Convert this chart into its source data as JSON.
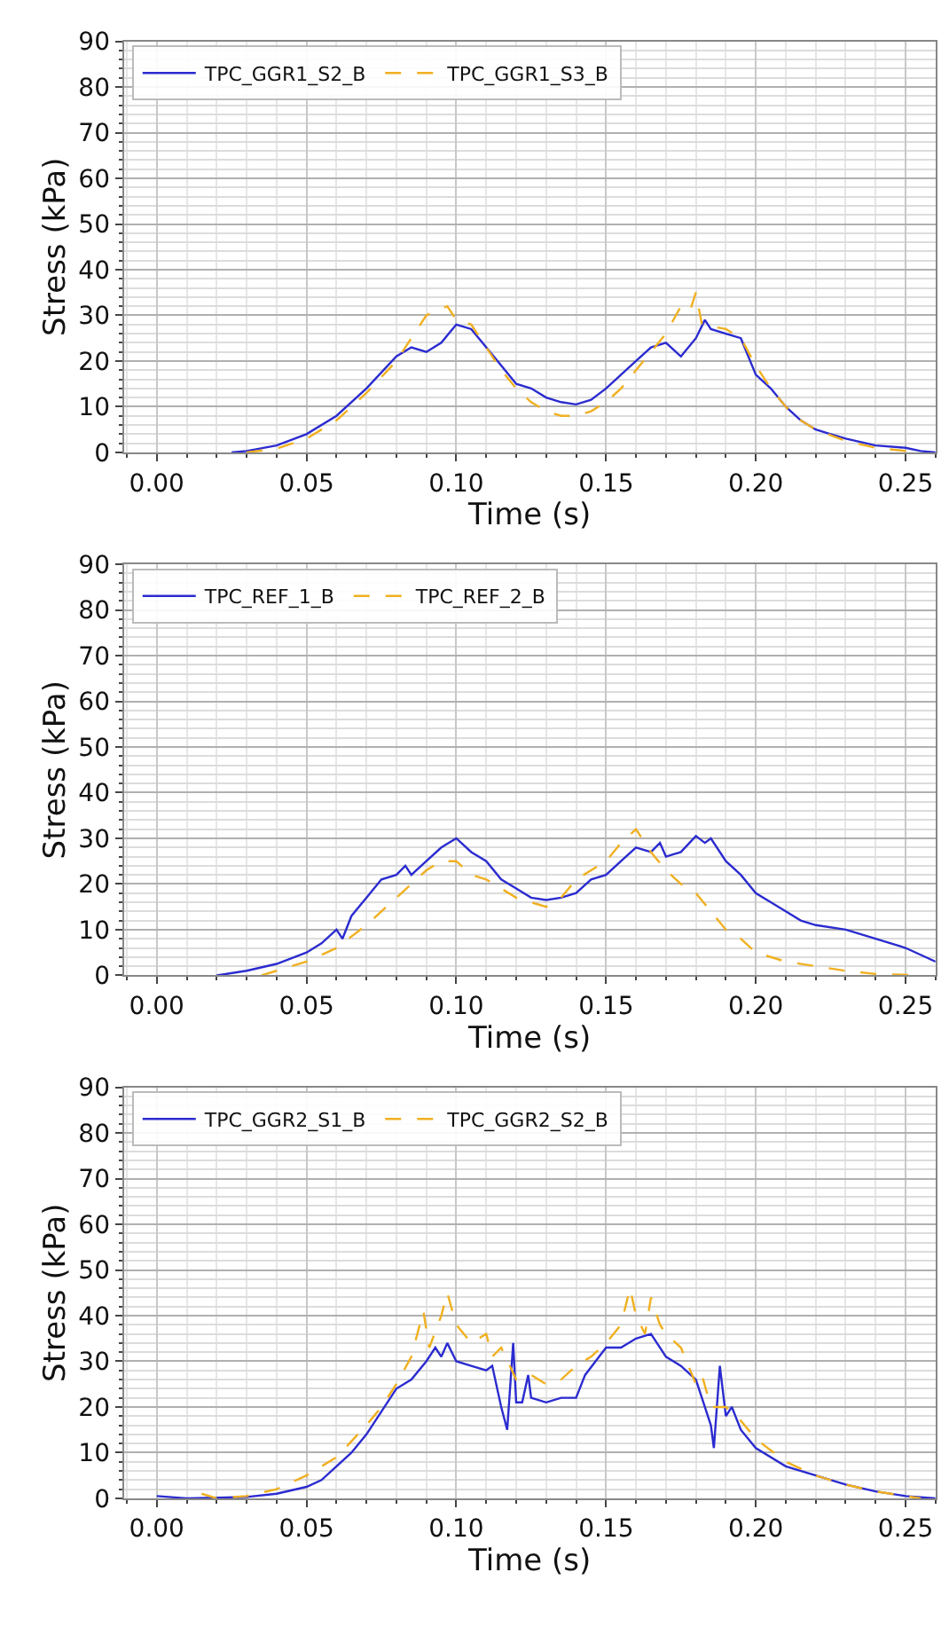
{
  "chart_data": [
    {
      "type": "line",
      "xlabel": "Time (s)",
      "ylabel": "Stress (kPa)",
      "xlim": [
        -0.011,
        0.26
      ],
      "ylim": [
        0,
        90
      ],
      "xticks": [
        {
          "value": 0,
          "label": "0.00"
        },
        0.05,
        {
          "value": 0.1,
          "label": "0.10"
        },
        0.15,
        {
          "value": 0.2,
          "label": "0.20"
        },
        0.25
      ],
      "yticks": [
        0,
        10,
        20,
        30,
        40,
        50,
        60,
        70,
        80,
        90
      ],
      "grid": true,
      "legend": "top left",
      "marker": "none",
      "series": [
        {
          "name": "TPC_GGR1_S2_B",
          "color": "#2b2bd0",
          "line_style": "solid",
          "x": [
            0.025,
            0.03,
            0.04,
            0.05,
            0.06,
            0.07,
            0.08,
            0.085,
            0.09,
            0.095,
            0.1,
            0.105,
            0.11,
            0.115,
            0.12,
            0.125,
            0.13,
            0.135,
            0.14,
            0.145,
            0.15,
            0.155,
            0.16,
            0.165,
            0.17,
            0.175,
            0.18,
            0.183,
            0.185,
            0.19,
            0.195,
            0.2,
            0.205,
            0.21,
            0.215,
            0.22,
            0.225,
            0.23,
            0.24,
            0.25,
            0.255,
            0.26
          ],
          "values": [
            0,
            0.3,
            1.5,
            4,
            8,
            14,
            21,
            23,
            22,
            24,
            28,
            27,
            23,
            19,
            15,
            14,
            12,
            11,
            10.5,
            11.5,
            14,
            17,
            20,
            23,
            24,
            21,
            25,
            29,
            27,
            26,
            25,
            17,
            14,
            10,
            7,
            5,
            4,
            3,
            1.5,
            1,
            0.3,
            0
          ]
        },
        {
          "name": "TPC_GGR1_S3_B",
          "color": "#f0b020",
          "line_style": "dashed",
          "x": [
            0.03,
            0.04,
            0.05,
            0.06,
            0.07,
            0.08,
            0.085,
            0.09,
            0.093,
            0.097,
            0.1,
            0.105,
            0.11,
            0.115,
            0.12,
            0.125,
            0.13,
            0.135,
            0.14,
            0.145,
            0.15,
            0.155,
            0.16,
            0.165,
            0.17,
            0.175,
            0.178,
            0.18,
            0.182,
            0.19,
            0.195,
            0.2,
            0.205,
            0.21,
            0.215,
            0.22,
            0.23,
            0.24,
            0.25,
            0.255
          ],
          "values": [
            0,
            0.8,
            3,
            7,
            13,
            20,
            25,
            30,
            31,
            32,
            29,
            28,
            23,
            18,
            14,
            11,
            9,
            8,
            8,
            9,
            11,
            14,
            18,
            22,
            26,
            32,
            31,
            35,
            28,
            27,
            25,
            19,
            14,
            10,
            7,
            5,
            2.5,
            1,
            0.3,
            0
          ]
        }
      ]
    },
    {
      "type": "line",
      "xlabel": "Time (s)",
      "ylabel": "Stress (kPa)",
      "xlim": [
        -0.011,
        0.26
      ],
      "ylim": [
        0,
        90
      ],
      "xticks": [
        {
          "value": 0,
          "label": "0.00"
        },
        0.05,
        {
          "value": 0.1,
          "label": "0.10"
        },
        0.15,
        {
          "value": 0.2,
          "label": "0.20"
        },
        0.25
      ],
      "yticks": [
        0,
        10,
        20,
        30,
        40,
        50,
        60,
        70,
        80,
        90
      ],
      "grid": true,
      "legend": "top left",
      "marker": "none",
      "series": [
        {
          "name": "TPC_REF_1_B",
          "color": "#2b2bd0",
          "line_style": "solid",
          "x": [
            0.02,
            0.03,
            0.04,
            0.05,
            0.055,
            0.06,
            0.062,
            0.065,
            0.07,
            0.075,
            0.08,
            0.083,
            0.085,
            0.09,
            0.095,
            0.1,
            0.105,
            0.11,
            0.115,
            0.12,
            0.125,
            0.13,
            0.135,
            0.14,
            0.145,
            0.15,
            0.155,
            0.16,
            0.165,
            0.168,
            0.17,
            0.175,
            0.18,
            0.183,
            0.185,
            0.19,
            0.195,
            0.2,
            0.205,
            0.21,
            0.215,
            0.22,
            0.23,
            0.24,
            0.25,
            0.26
          ],
          "values": [
            0,
            1,
            2.5,
            5,
            7,
            10,
            8,
            13,
            17,
            21,
            22,
            24,
            22,
            25,
            28,
            30,
            27,
            25,
            21,
            19,
            17,
            16.5,
            17,
            18,
            21,
            22,
            25,
            28,
            27,
            29,
            26,
            27,
            30.5,
            29,
            30,
            25,
            22,
            18,
            16,
            14,
            12,
            11,
            10,
            8,
            6,
            3
          ]
        },
        {
          "name": "TPC_REF_2_B",
          "color": "#f0b020",
          "line_style": "dashed",
          "x": [
            0.035,
            0.04,
            0.05,
            0.06,
            0.07,
            0.08,
            0.09,
            0.095,
            0.1,
            0.105,
            0.11,
            0.12,
            0.125,
            0.13,
            0.135,
            0.14,
            0.145,
            0.15,
            0.155,
            0.16,
            0.165,
            0.17,
            0.175,
            0.18,
            0.185,
            0.19,
            0.195,
            0.2,
            0.21,
            0.22,
            0.23,
            0.24,
            0.255
          ],
          "values": [
            0,
            1,
            3,
            6,
            11,
            17,
            23,
            25,
            25,
            22,
            21,
            17,
            16,
            15,
            17,
            21,
            23,
            25,
            29,
            32,
            27,
            23,
            20,
            18,
            14,
            10,
            8,
            5,
            3,
            2,
            1,
            0.3,
            0
          ]
        }
      ]
    },
    {
      "type": "line",
      "xlabel": "Time (s)",
      "ylabel": "Stress (kPa)",
      "xlim": [
        -0.011,
        0.26
      ],
      "ylim": [
        0,
        90
      ],
      "xticks": [
        {
          "value": 0,
          "label": "0.00"
        },
        0.05,
        {
          "value": 0.1,
          "label": "0.10"
        },
        0.15,
        {
          "value": 0.2,
          "label": "0.20"
        },
        0.25
      ],
      "yticks": [
        0,
        10,
        20,
        30,
        40,
        50,
        60,
        70,
        80,
        90
      ],
      "grid": true,
      "legend": "top left",
      "marker": "none",
      "series": [
        {
          "name": "TPC_GGR2_S1_B",
          "color": "#2b2bd0",
          "line_style": "solid",
          "x": [
            0.0,
            0.01,
            0.03,
            0.04,
            0.05,
            0.055,
            0.06,
            0.065,
            0.07,
            0.075,
            0.08,
            0.085,
            0.09,
            0.093,
            0.095,
            0.097,
            0.1,
            0.105,
            0.11,
            0.112,
            0.115,
            0.117,
            0.119,
            0.12,
            0.122,
            0.124,
            0.125,
            0.13,
            0.135,
            0.14,
            0.143,
            0.15,
            0.155,
            0.16,
            0.165,
            0.17,
            0.175,
            0.18,
            0.185,
            0.186,
            0.188,
            0.19,
            0.192,
            0.195,
            0.2,
            0.21,
            0.22,
            0.23,
            0.24,
            0.25,
            0.26
          ],
          "values": [
            0.5,
            0,
            0.3,
            1,
            2.5,
            4,
            7,
            10,
            14,
            19,
            24,
            26,
            30,
            33,
            31,
            34,
            30,
            29,
            28,
            29,
            20,
            15,
            34,
            21,
            21,
            27,
            22,
            21,
            22,
            22,
            27,
            33,
            33,
            35,
            36,
            31,
            29,
            26,
            16,
            11,
            29,
            18,
            20,
            15,
            11,
            7,
            5,
            3,
            1.5,
            0.5,
            0
          ]
        },
        {
          "name": "TPC_GGR2_S2_B",
          "color": "#f0b020",
          "line_style": "dashed",
          "x": [
            0.015,
            0.02,
            0.03,
            0.04,
            0.05,
            0.06,
            0.07,
            0.075,
            0.08,
            0.085,
            0.089,
            0.091,
            0.095,
            0.097,
            0.1,
            0.105,
            0.11,
            0.112,
            0.115,
            0.12,
            0.125,
            0.13,
            0.135,
            0.14,
            0.145,
            0.15,
            0.155,
            0.158,
            0.16,
            0.163,
            0.165,
            0.168,
            0.17,
            0.175,
            0.18,
            0.182,
            0.185,
            0.19,
            0.195,
            0.2,
            0.21,
            0.22,
            0.23,
            0.24,
            0.25,
            0.255
          ],
          "values": [
            1,
            0,
            0.5,
            2,
            5,
            9,
            16,
            20,
            25,
            31,
            41,
            33,
            40,
            45,
            38,
            34,
            36,
            31,
            33,
            26,
            27,
            25,
            26,
            29,
            31,
            34,
            38,
            46,
            40,
            36,
            44,
            38,
            36,
            33,
            25,
            27,
            20,
            20,
            17,
            13,
            8,
            5,
            3,
            1.5,
            0.5,
            0
          ]
        }
      ]
    }
  ]
}
